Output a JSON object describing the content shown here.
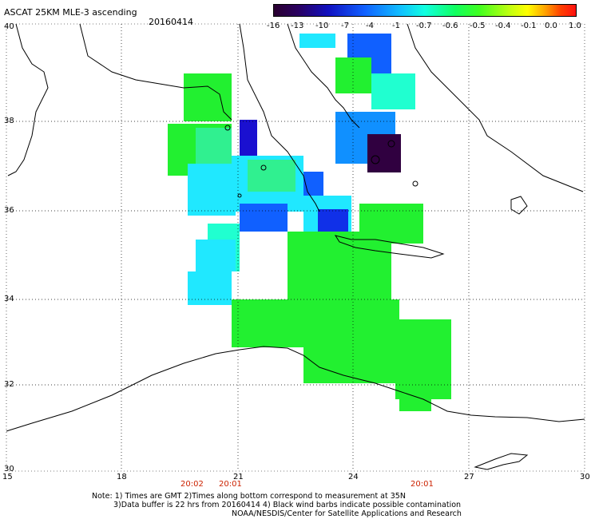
{
  "header": {
    "title": "ASCAT 25KM MLE-3 ascending",
    "date": "20160414"
  },
  "colorbar": {
    "labels": [
      "-16",
      "-13",
      "-10",
      "-7",
      "-4",
      "-1",
      "-0.7",
      "-0.6",
      "-0.5",
      "-0.4",
      "-0.1",
      "0.0",
      "1.0"
    ]
  },
  "axes": {
    "lat_labels": [
      "40",
      "38",
      "36",
      "34",
      "32",
      "30"
    ],
    "lon_labels": [
      "15",
      "18",
      "21",
      "24",
      "27",
      "30"
    ]
  },
  "times": {
    "t1": "20:02",
    "t2": "20:01",
    "t3": "20:01"
  },
  "notes": {
    "line1": "Note: 1) Times are GMT 2)Times along bottom correspond to measurement at 35N",
    "line2": "3)Data buffer is 22 hrs from 20160414 4) Black wind barbs indicate possible contamination",
    "line3": "NOAA/NESDIS/Center for Satellite Applications and Research"
  },
  "colors": {
    "green": "#20f020",
    "cyan": "#20e8ff",
    "teal": "#20ffd0",
    "blue": "#1030e8",
    "darkblue": "#2000c0",
    "purple": "#300040"
  }
}
